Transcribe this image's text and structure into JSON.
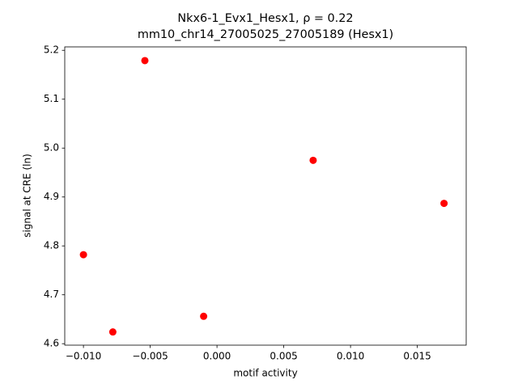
{
  "chart_data": {
    "type": "scatter",
    "title": "Nkx6-1_Evx1_Hesx1, ρ = 0.22",
    "subtitle": "mm10_chr14_27005025_27005189 (Hesx1)",
    "x_label": "motif activity",
    "y_label": "signal at CRE (ln)",
    "color": "#ff0000",
    "x": [
      -0.01,
      -0.0078,
      -0.0054,
      -0.001,
      0.0072,
      0.017
    ],
    "values": [
      4.782,
      4.624,
      5.179,
      4.656,
      4.975,
      4.887
    ],
    "xlim": [
      -0.0114,
      0.01866
    ],
    "ylim": [
      4.597,
      5.207
    ],
    "xticks": [
      {
        "value": -0.01,
        "label": "−0.010"
      },
      {
        "value": -0.005,
        "label": "−0.005"
      },
      {
        "value": 0,
        "label": "0.000"
      },
      {
        "value": 0.005,
        "label": "0.005"
      },
      {
        "value": 0.01,
        "label": "0.010"
      },
      {
        "value": 0.015,
        "label": "0.015"
      }
    ],
    "yticks": [
      4.6,
      4.7,
      4.8,
      4.9,
      {
        "value": 5.0,
        "label": "5.0"
      },
      5.1,
      5.2
    ]
  }
}
